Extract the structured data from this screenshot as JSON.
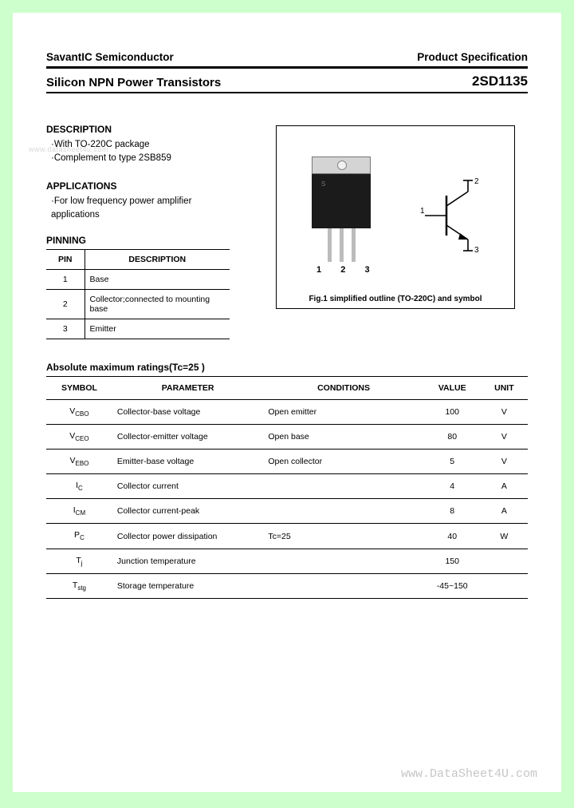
{
  "header": {
    "company": "SavantIC Semiconductor",
    "doc_type": "Product Specification",
    "product_line": "Silicon NPN Power Transistors",
    "part_number": "2SD1135"
  },
  "watermarks": {
    "left": "www.datasheet4u.com",
    "footer": "www.DataSheet4U.com"
  },
  "description": {
    "heading": "DESCRIPTION",
    "lines": [
      "·With TO-220C package",
      "·Complement to type 2SB859"
    ]
  },
  "applications": {
    "heading": "APPLICATIONS",
    "lines": [
      "·For low frequency power amplifier",
      " applications"
    ]
  },
  "pinning": {
    "heading": "PINNING",
    "col_pin": "PIN",
    "col_desc": "DESCRIPTION",
    "rows": [
      {
        "pin": "1",
        "desc": "Base"
      },
      {
        "pin": "2",
        "desc": "Collector;connected to mounting base"
      },
      {
        "pin": "3",
        "desc": "Emitter"
      }
    ]
  },
  "figure": {
    "pin_labels": "1  2  3",
    "caption": "Fig.1 simplified outline (TO-220C) and symbol",
    "sym_pins": {
      "p1": "1",
      "p2": "2",
      "p3": "3"
    }
  },
  "ratings": {
    "heading": "Absolute maximum ratings(Tc=25 )",
    "cols": {
      "symbol": "SYMBOL",
      "parameter": "PARAMETER",
      "conditions": "CONDITIONS",
      "value": "VALUE",
      "unit": "UNIT"
    },
    "rows": [
      {
        "sym": "V",
        "sub": "CBO",
        "param": "Collector-base voltage",
        "cond": "Open emitter",
        "value": "100",
        "unit": "V"
      },
      {
        "sym": "V",
        "sub": "CEO",
        "param": "Collector-emitter voltage",
        "cond": "Open base",
        "value": "80",
        "unit": "V"
      },
      {
        "sym": "V",
        "sub": "EBO",
        "param": "Emitter-base voltage",
        "cond": "Open collector",
        "value": "5",
        "unit": "V"
      },
      {
        "sym": "I",
        "sub": "C",
        "param": "Collector current",
        "cond": "",
        "value": "4",
        "unit": "A"
      },
      {
        "sym": "I",
        "sub": "CM",
        "param": "Collector current-peak",
        "cond": "",
        "value": "8",
        "unit": "A"
      },
      {
        "sym": "P",
        "sub": "C",
        "param": "Collector power dissipation",
        "cond": "Tc=25",
        "value": "40",
        "unit": "W"
      },
      {
        "sym": "T",
        "sub": "j",
        "param": "Junction temperature",
        "cond": "",
        "value": "150",
        "unit": ""
      },
      {
        "sym": "T",
        "sub": "stg",
        "param": "Storage temperature",
        "cond": "",
        "value": "-45~150",
        "unit": ""
      }
    ]
  }
}
